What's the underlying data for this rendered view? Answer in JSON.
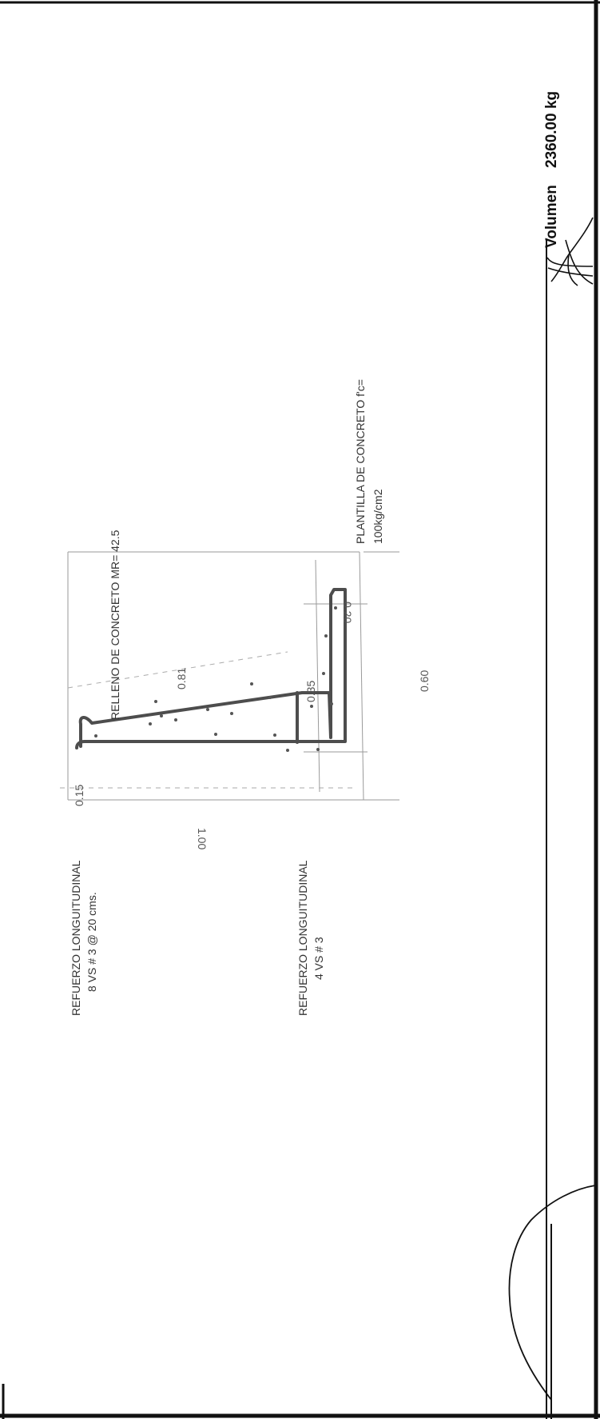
{
  "header": {
    "volume_label": "Volumen",
    "weight_value": "2360.00 kg"
  },
  "drawing": {
    "fill_label": "RELLENO DE CONCRETO MR= 42.5",
    "slab_label_1": "PLANTILLA DE CONCRETO f'c=",
    "slab_label_2": "100kg/cm2",
    "rebar_top_1": "REFUERZO LONGUITUDINAL",
    "rebar_top_2": "8 VS # 3 @ 20 cms.",
    "rebar_bottom_1": "REFUERZO LONGUITUDINAL",
    "rebar_bottom_2": "4 VS # 3",
    "dims": {
      "d015": "0.15",
      "d081": "0.81",
      "d035": "0.35",
      "d020": "0.20",
      "d060": "0.60",
      "d100": "1.00"
    }
  },
  "colors": {
    "rebar": "#4d4d4d",
    "lines": "#9a9a9a",
    "border": "#111111"
  }
}
